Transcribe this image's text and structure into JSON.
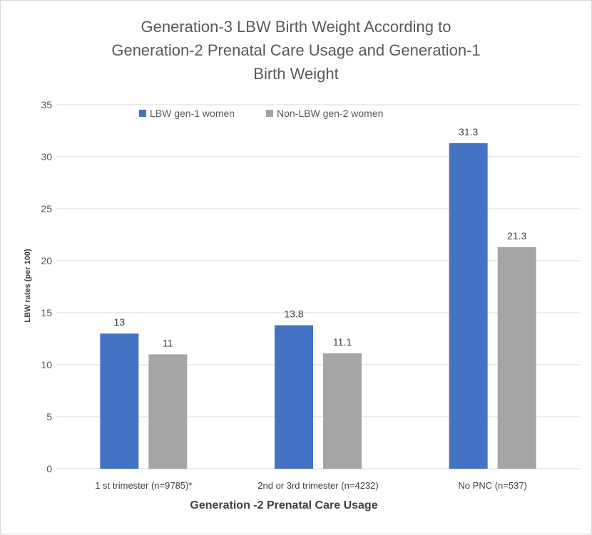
{
  "chart_data": {
    "type": "bar",
    "title_lines": [
      "Generation-3 LBW Birth Weight According to",
      "Generation-2 Prenatal Care Usage and Generation-1",
      "Birth Weight"
    ],
    "categories": [
      "1 st trimester (n=9785)*",
      "2nd or 3rd trimester (n=4232)",
      "No PNC (n=537)"
    ],
    "series": [
      {
        "name": "LBW gen-1 women",
        "values": [
          13,
          13.8,
          31.3
        ],
        "color": "#4472c4"
      },
      {
        "name": "Non-LBW gen-2 women",
        "values": [
          11,
          11.1,
          21.3
        ],
        "color": "#a5a5a5"
      }
    ],
    "xlabel": "Generation -2 Prenatal Care  Usage",
    "ylabel": "LBW rates (per 100)",
    "ylim": [
      0,
      35
    ],
    "yticks": [
      0,
      5,
      10,
      15,
      20,
      25,
      30,
      35
    ],
    "grid": true,
    "gridline_color": "#d9d9d9",
    "legend_position": "top-left"
  }
}
